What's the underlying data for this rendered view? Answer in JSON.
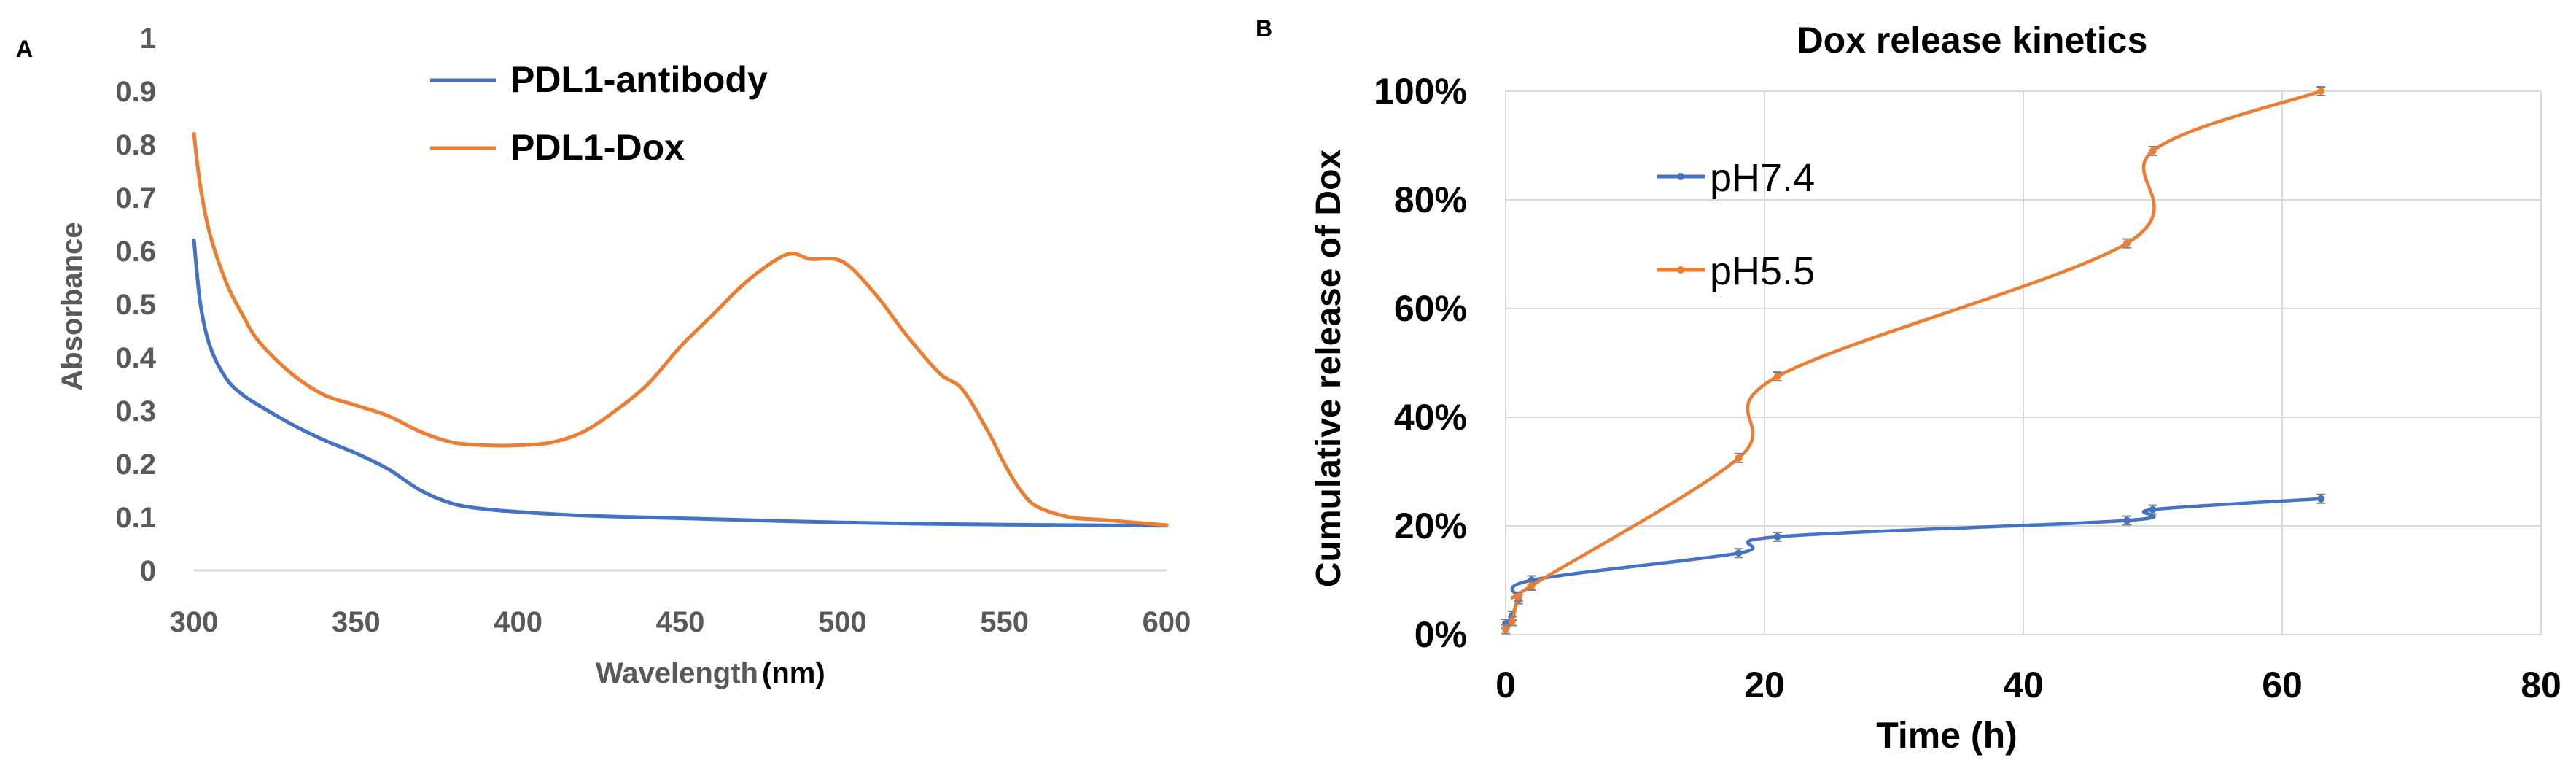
{
  "colors": {
    "blue": "#4472C4",
    "orange": "#ED7D31",
    "grid": "#d9d9d9",
    "axis": "#d9d9d9",
    "gray_text": "#595959",
    "dark_text": "#000000"
  },
  "chart_data": [
    {
      "panel": "A",
      "type": "line",
      "title": "",
      "xlabel_main": "Wavelength",
      "xlabel_unit": "(nm)",
      "ylabel": "Absorbance",
      "xlim": [
        300,
        600
      ],
      "ylim": [
        0,
        1
      ],
      "xticks": [
        {
          "v": 300,
          "label": "300"
        },
        {
          "v": 350,
          "label": "350"
        },
        {
          "v": 400,
          "label": "400"
        },
        {
          "v": 450,
          "label": "450"
        },
        {
          "v": 500,
          "label": "500"
        },
        {
          "v": 550,
          "label": "550"
        },
        {
          "v": 600,
          "label": "600"
        }
      ],
      "yticks": [
        {
          "v": 0,
          "label": "0"
        },
        {
          "v": 0.1,
          "label": "0.1"
        },
        {
          "v": 0.2,
          "label": "0.2"
        },
        {
          "v": 0.3,
          "label": "0.3"
        },
        {
          "v": 0.4,
          "label": "0.4"
        },
        {
          "v": 0.5,
          "label": "0.5"
        },
        {
          "v": 0.6,
          "label": "0.6"
        },
        {
          "v": 0.7,
          "label": "0.7"
        },
        {
          "v": 0.8,
          "label": "0.8"
        },
        {
          "v": 0.9,
          "label": "0.9"
        },
        {
          "v": 1,
          "label": "1"
        }
      ],
      "grid": false,
      "legend_position": "top-center",
      "series": [
        {
          "name": "PDL1-antibody",
          "color": "#4472C4",
          "x": [
            300,
            302,
            305,
            310,
            315,
            320,
            330,
            340,
            350,
            360,
            370,
            380,
            390,
            400,
            420,
            450,
            500,
            550,
            600
          ],
          "y": [
            0.62,
            0.5,
            0.42,
            0.36,
            0.33,
            0.31,
            0.275,
            0.245,
            0.22,
            0.19,
            0.15,
            0.125,
            0.115,
            0.11,
            0.103,
            0.098,
            0.09,
            0.086,
            0.084
          ]
        },
        {
          "name": "PDL1-Dox",
          "color": "#ED7D31",
          "x": [
            300,
            302,
            305,
            310,
            315,
            320,
            330,
            340,
            350,
            360,
            370,
            380,
            390,
            400,
            410,
            420,
            430,
            440,
            450,
            460,
            470,
            480,
            485,
            490,
            500,
            510,
            520,
            530,
            537,
            545,
            550,
            555,
            560,
            570,
            580,
            590,
            600
          ],
          "y": [
            0.82,
            0.72,
            0.63,
            0.54,
            0.48,
            0.43,
            0.37,
            0.33,
            0.31,
            0.29,
            0.26,
            0.24,
            0.235,
            0.235,
            0.24,
            0.26,
            0.3,
            0.35,
            0.42,
            0.48,
            0.54,
            0.585,
            0.595,
            0.585,
            0.58,
            0.52,
            0.44,
            0.37,
            0.34,
            0.26,
            0.2,
            0.15,
            0.12,
            0.1,
            0.095,
            0.09,
            0.085
          ]
        }
      ]
    },
    {
      "panel": "B",
      "type": "line",
      "title": "Dox release kinetics",
      "xlabel": "Time (h)",
      "ylabel": "Cumulative release of Dox",
      "xlim": [
        0,
        80
      ],
      "ylim": [
        0,
        100
      ],
      "xticks": [
        {
          "v": 0,
          "label": "0"
        },
        {
          "v": 20,
          "label": "20"
        },
        {
          "v": 40,
          "label": "40"
        },
        {
          "v": 60,
          "label": "60"
        },
        {
          "v": 80,
          "label": "80"
        }
      ],
      "yticks": [
        {
          "v": 0,
          "label": "0%"
        },
        {
          "v": 20,
          "label": "20%"
        },
        {
          "v": 40,
          "label": "40%"
        },
        {
          "v": 60,
          "label": "60%"
        },
        {
          "v": 80,
          "label": "80%"
        },
        {
          "v": 100,
          "label": "100%"
        }
      ],
      "grid": true,
      "legend_position": "left-middle",
      "series": [
        {
          "name": "pH7.4",
          "color": "#4472C4",
          "x": [
            0,
            0.5,
            1,
            2,
            18,
            21,
            48,
            50,
            63
          ],
          "y": [
            2,
            3.5,
            6.5,
            10,
            15,
            18,
            21,
            23,
            25
          ]
        },
        {
          "name": "pH5.5",
          "color": "#ED7D31",
          "x": [
            0,
            0.5,
            1,
            2,
            18,
            21,
            48,
            50,
            63
          ],
          "y": [
            1,
            2.5,
            7,
            9,
            32.5,
            47.5,
            72,
            89,
            100
          ]
        }
      ]
    }
  ],
  "panel_labels": {
    "a": "A",
    "b": "B"
  }
}
